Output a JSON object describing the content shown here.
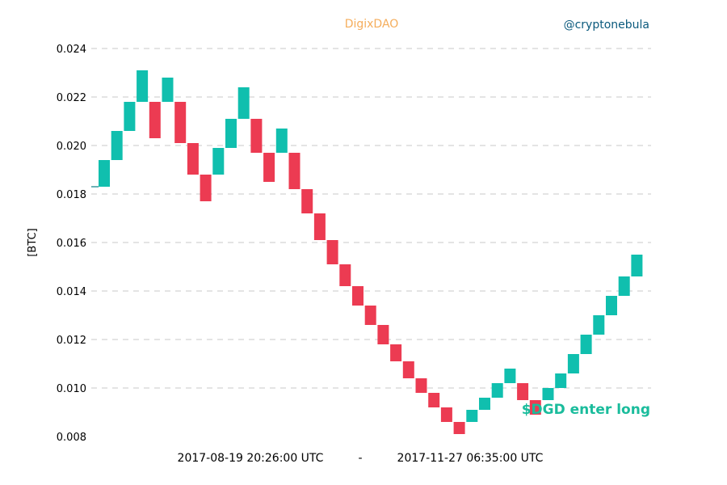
{
  "header": {
    "title": "DigixDAO",
    "title_color": "#f5ad5b",
    "handle": "@cryptonebula",
    "handle_color": "#0b5a7d"
  },
  "annotation": {
    "text": "$DGD enter long",
    "color": "#1abc9c"
  },
  "footer": {
    "start": "2017-08-19 20:26:00 UTC",
    "separator": "-",
    "end": "2017-11-27 06:35:00 UTC"
  },
  "chart_data": {
    "type": "renko",
    "title": "DigixDAO",
    "ylabel": "[BTC]",
    "ylim": [
      0.008,
      0.024
    ],
    "yticks": [
      "0.008",
      "0.010",
      "0.012",
      "0.014",
      "0.016",
      "0.018",
      "0.020",
      "0.022",
      "0.024"
    ],
    "grid": "horizontal-dashed",
    "colors": {
      "up": "#10bfae",
      "down": "#ec3b52"
    },
    "start_level": 0.0183,
    "bricks": [
      {
        "dir": "up",
        "low": 0.0183,
        "high": 0.0194
      },
      {
        "dir": "up",
        "low": 0.0194,
        "high": 0.0206
      },
      {
        "dir": "up",
        "low": 0.0206,
        "high": 0.0218
      },
      {
        "dir": "up",
        "low": 0.0218,
        "high": 0.0231
      },
      {
        "dir": "down",
        "low": 0.0203,
        "high": 0.0218
      },
      {
        "dir": "up",
        "low": 0.0218,
        "high": 0.0228
      },
      {
        "dir": "down",
        "low": 0.0201,
        "high": 0.0218
      },
      {
        "dir": "down",
        "low": 0.0188,
        "high": 0.0201
      },
      {
        "dir": "down",
        "low": 0.0177,
        "high": 0.0188
      },
      {
        "dir": "up",
        "low": 0.0188,
        "high": 0.0199
      },
      {
        "dir": "up",
        "low": 0.0199,
        "high": 0.0211
      },
      {
        "dir": "up",
        "low": 0.0211,
        "high": 0.0224
      },
      {
        "dir": "down",
        "low": 0.0197,
        "high": 0.0211
      },
      {
        "dir": "down",
        "low": 0.0185,
        "high": 0.0197
      },
      {
        "dir": "up",
        "low": 0.0197,
        "high": 0.0207
      },
      {
        "dir": "down",
        "low": 0.0182,
        "high": 0.0197
      },
      {
        "dir": "down",
        "low": 0.0172,
        "high": 0.0182
      },
      {
        "dir": "down",
        "low": 0.0161,
        "high": 0.0172
      },
      {
        "dir": "down",
        "low": 0.0151,
        "high": 0.0161
      },
      {
        "dir": "down",
        "low": 0.0142,
        "high": 0.0151
      },
      {
        "dir": "down",
        "low": 0.0134,
        "high": 0.0142
      },
      {
        "dir": "down",
        "low": 0.0126,
        "high": 0.0134
      },
      {
        "dir": "down",
        "low": 0.0118,
        "high": 0.0126
      },
      {
        "dir": "down",
        "low": 0.0111,
        "high": 0.0118
      },
      {
        "dir": "down",
        "low": 0.0104,
        "high": 0.0111
      },
      {
        "dir": "down",
        "low": 0.0098,
        "high": 0.0104
      },
      {
        "dir": "down",
        "low": 0.0092,
        "high": 0.0098
      },
      {
        "dir": "down",
        "low": 0.0086,
        "high": 0.0092
      },
      {
        "dir": "down",
        "low": 0.0081,
        "high": 0.0086
      },
      {
        "dir": "up",
        "low": 0.0086,
        "high": 0.0091
      },
      {
        "dir": "up",
        "low": 0.0091,
        "high": 0.0096
      },
      {
        "dir": "up",
        "low": 0.0096,
        "high": 0.0102
      },
      {
        "dir": "up",
        "low": 0.0102,
        "high": 0.0108
      },
      {
        "dir": "down",
        "low": 0.0095,
        "high": 0.0102
      },
      {
        "dir": "down",
        "low": 0.0089,
        "high": 0.0095
      },
      {
        "dir": "up",
        "low": 0.0095,
        "high": 0.01
      },
      {
        "dir": "up",
        "low": 0.01,
        "high": 0.0106
      },
      {
        "dir": "up",
        "low": 0.0106,
        "high": 0.0114
      },
      {
        "dir": "up",
        "low": 0.0114,
        "high": 0.0122
      },
      {
        "dir": "up",
        "low": 0.0122,
        "high": 0.013
      },
      {
        "dir": "up",
        "low": 0.013,
        "high": 0.0138
      },
      {
        "dir": "up",
        "low": 0.0138,
        "high": 0.0146
      },
      {
        "dir": "up",
        "low": 0.0146,
        "high": 0.0155
      }
    ]
  }
}
